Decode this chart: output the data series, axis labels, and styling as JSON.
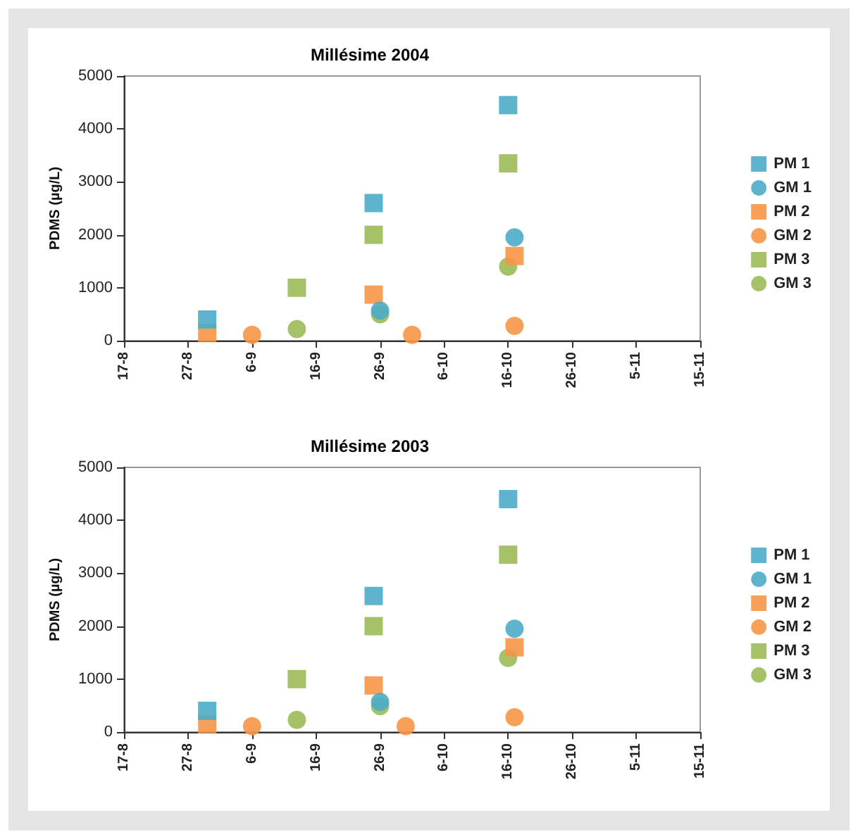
{
  "chart_data": [
    {
      "type": "scatter",
      "title": "Millésime 2004",
      "ylabel": "PDMS (µg/L)",
      "xlim": [
        "--08-17",
        "--11-15"
      ],
      "ylim": [
        0,
        5000
      ],
      "yticks": [
        0,
        1000,
        2000,
        3000,
        4000,
        5000
      ],
      "xticks": [
        {
          "value": "--08-17",
          "label": "17-8"
        },
        {
          "value": "--08-27",
          "label": "27-8"
        },
        {
          "value": "--09-06",
          "label": "6-9"
        },
        {
          "value": "--09-16",
          "label": "16-9"
        },
        {
          "value": "--09-26",
          "label": "26-9"
        },
        {
          "value": "--10-06",
          "label": "6-10"
        },
        {
          "value": "--10-16",
          "label": "16-10"
        },
        {
          "value": "--10-26",
          "label": "26-10"
        },
        {
          "value": "--11-05",
          "label": "5-11"
        },
        {
          "value": "--11-15",
          "label": "15-11"
        }
      ],
      "grid": false,
      "legend": "right",
      "series": [
        {
          "name": "PM 1",
          "color": "#4bacc6",
          "marker": "square",
          "x": [
            "--08-30",
            "--09-25",
            "--10-16"
          ],
          "values": [
            400,
            2600,
            4450
          ]
        },
        {
          "name": "GM 1",
          "color": "#4bacc6",
          "marker": "circle",
          "x": [
            "--09-26",
            "--10-17"
          ],
          "values": [
            570,
            1950
          ]
        },
        {
          "name": "PM 2",
          "color": "#f79646",
          "marker": "square",
          "x": [
            "--08-30",
            "--09-25",
            "--10-17"
          ],
          "values": [
            150,
            870,
            1600
          ]
        },
        {
          "name": "GM 2",
          "color": "#f79646",
          "marker": "circle",
          "x": [
            "--09-06",
            "--10-01",
            "--10-17"
          ],
          "values": [
            110,
            110,
            280
          ]
        },
        {
          "name": "PM 3",
          "color": "#9bbb59",
          "marker": "square",
          "x": [
            "--09-13",
            "--09-25",
            "--10-16"
          ],
          "values": [
            1000,
            2000,
            3350
          ]
        },
        {
          "name": "GM 3",
          "color": "#9bbb59",
          "marker": "circle",
          "x": [
            "--09-13",
            "--09-26",
            "--10-16"
          ],
          "values": [
            220,
            500,
            1400
          ]
        }
      ]
    },
    {
      "type": "scatter",
      "title": "Millésime 2003",
      "ylabel": "PDMS (µg/L)",
      "xlim": [
        "--08-17",
        "--11-15"
      ],
      "ylim": [
        0,
        5000
      ],
      "yticks": [
        0,
        1000,
        2000,
        3000,
        4000,
        5000
      ],
      "xticks": [
        {
          "value": "--08-17",
          "label": "17-8"
        },
        {
          "value": "--08-27",
          "label": "27-8"
        },
        {
          "value": "--09-06",
          "label": "6-9"
        },
        {
          "value": "--09-16",
          "label": "16-9"
        },
        {
          "value": "--09-26",
          "label": "26-9"
        },
        {
          "value": "--10-06",
          "label": "6-10"
        },
        {
          "value": "--10-16",
          "label": "16-10"
        },
        {
          "value": "--10-26",
          "label": "26-10"
        },
        {
          "value": "--11-05",
          "label": "5-11"
        },
        {
          "value": "--11-15",
          "label": "15-11"
        }
      ],
      "grid": false,
      "legend": "right",
      "series": [
        {
          "name": "PM 1",
          "color": "#4bacc6",
          "marker": "square",
          "x": [
            "--08-30",
            "--09-25",
            "--10-16"
          ],
          "values": [
            400,
            2570,
            4400
          ]
        },
        {
          "name": "GM 1",
          "color": "#4bacc6",
          "marker": "circle",
          "x": [
            "--09-26",
            "--10-17"
          ],
          "values": [
            570,
            1950
          ]
        },
        {
          "name": "PM 2",
          "color": "#f79646",
          "marker": "square",
          "x": [
            "--08-30",
            "--09-25",
            "--10-17"
          ],
          "values": [
            150,
            880,
            1600
          ]
        },
        {
          "name": "GM 2",
          "color": "#f79646",
          "marker": "circle",
          "x": [
            "--09-06",
            "--09-30",
            "--10-17"
          ],
          "values": [
            110,
            110,
            280
          ]
        },
        {
          "name": "PM 3",
          "color": "#9bbb59",
          "marker": "square",
          "x": [
            "--09-13",
            "--09-25",
            "--10-16"
          ],
          "values": [
            1000,
            2000,
            3350
          ]
        },
        {
          "name": "GM 3",
          "color": "#9bbb59",
          "marker": "circle",
          "x": [
            "--09-13",
            "--09-26",
            "--10-16"
          ],
          "values": [
            230,
            490,
            1400
          ]
        }
      ]
    }
  ]
}
